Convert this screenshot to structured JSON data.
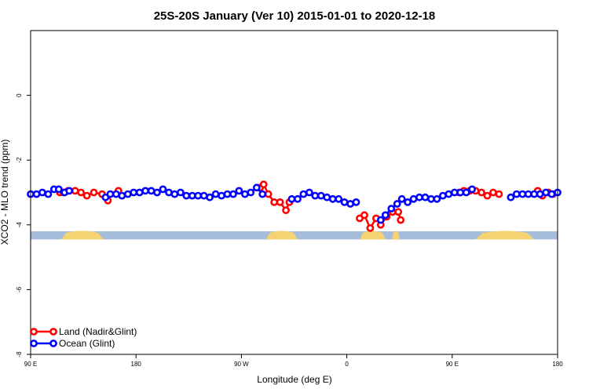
{
  "chart_data": {
    "type": "line",
    "title": "25S-20S January (Ver 10)   2015-01-01 to 2020-12-18",
    "xlabel": "Longitude (deg E)",
    "ylabel": "XCO2 - MLO trend (ppm)",
    "xlim": [
      90,
      540
    ],
    "ylim": [
      -8,
      2
    ],
    "x_ticks": [
      {
        "value": 90,
        "label": "90 E"
      },
      {
        "value": 180,
        "label": "180"
      },
      {
        "value": 270,
        "label": "90 W"
      },
      {
        "value": 360,
        "label": "0"
      },
      {
        "value": 450,
        "label": "90 E"
      },
      {
        "value": 540,
        "label": "180"
      }
    ],
    "y_ticks": [
      {
        "value": 0,
        "label": "0"
      },
      {
        "value": -2,
        "label": "-2"
      },
      {
        "value": -4,
        "label": "-4"
      },
      {
        "value": -6,
        "label": "-6"
      },
      {
        "value": -8,
        "label": "-8"
      }
    ],
    "legend_position": "bottom-left",
    "land_mask": {
      "y_top": -4.2,
      "y_bottom": -4.45,
      "ocean_color": "#a5bcdb",
      "land_color": "#f5d372",
      "land_segments": [
        [
          116,
          152
        ],
        [
          291,
          318
        ],
        [
          371,
          393
        ],
        [
          399,
          405
        ],
        [
          470,
          520
        ]
      ]
    },
    "series": [
      {
        "name": "Land (Nadir&Glint)",
        "color": "#ff0000",
        "segments": [
          {
            "x": [
              115,
              118,
              122,
              128,
              133,
              138,
              144,
              151,
              156
            ],
            "y": [
              -3.0,
              -3.0,
              -2.95,
              -2.95,
              -3.0,
              -3.1,
              -3.0,
              -3.05,
              -3.25
            ]
          },
          {
            "x": [
              165,
              168
            ],
            "y": [
              -2.95,
              -3.1
            ]
          },
          {
            "x": [
              286,
              289,
              293,
              298,
              303,
              308,
              311
            ],
            "y": [
              -2.85,
              -2.75,
              -3.05,
              -3.3,
              -3.3,
              -3.55,
              -3.3
            ]
          },
          {
            "x": [
              371,
              375,
              380,
              385,
              389,
              394,
              399,
              404,
              406
            ],
            "y": [
              -3.8,
              -3.7,
              -4.1,
              -3.8,
              -4.0,
              -3.75,
              -3.6,
              -3.6,
              -3.85
            ]
          },
          {
            "x": [
              456,
              460,
              465,
              470,
              475,
              480,
              485,
              490
            ],
            "y": [
              -3.0,
              -2.95,
              -2.95,
              -2.95,
              -3.0,
              -3.1,
              -3.0,
              -3.05
            ]
          },
          {
            "x": [
              523,
              527,
              532,
              536
            ],
            "y": [
              -2.95,
              -3.1,
              -3.0,
              -3.05
            ]
          }
        ]
      },
      {
        "name": "Ocean (Glint)",
        "color": "#0000ff",
        "segments": [
          {
            "x": [
              90,
              95,
              100,
              105,
              110,
              114,
              119,
              123
            ],
            "y": [
              -3.05,
              -3.05,
              -3.0,
              -3.05,
              -2.9,
              -2.9,
              -3.0,
              -2.95
            ]
          },
          {
            "x": [
              154,
              158,
              163,
              168,
              173,
              178,
              183,
              188,
              193,
              198,
              203,
              208,
              213,
              218,
              223,
              228,
              233,
              238,
              243,
              248,
              253,
              258,
              263,
              268,
              273,
              278,
              283,
              288
            ],
            "y": [
              -3.15,
              -3.05,
              -3.05,
              -3.1,
              -3.05,
              -3.0,
              -3.0,
              -2.95,
              -2.95,
              -3.0,
              -2.9,
              -3.0,
              -3.05,
              -3.0,
              -3.1,
              -3.1,
              -3.1,
              -3.1,
              -3.15,
              -3.05,
              -3.1,
              -3.05,
              -3.05,
              -2.95,
              -3.05,
              -3.0,
              -2.85,
              -3.05
            ]
          },
          {
            "x": [
              313,
              318,
              323,
              328,
              333,
              338,
              343,
              348,
              353,
              358,
              363,
              368
            ],
            "y": [
              -3.2,
              -3.2,
              -3.05,
              -3.0,
              -3.1,
              -3.1,
              -3.15,
              -3.2,
              -3.2,
              -3.3,
              -3.35,
              -3.3
            ]
          },
          {
            "x": [
              389,
              393,
              398,
              403,
              407,
              412,
              417,
              422,
              427,
              432,
              437,
              442,
              447,
              452,
              457,
              462,
              467
            ],
            "y": [
              -3.85,
              -3.7,
              -3.5,
              -3.35,
              -3.2,
              -3.3,
              -3.2,
              -3.15,
              -3.15,
              -3.2,
              -3.2,
              -3.1,
              -3.05,
              -3.0,
              -3.0,
              -3.0,
              -2.9
            ]
          },
          {
            "x": [
              500,
              505,
              510,
              515,
              520,
              525,
              530,
              535,
              540
            ],
            "y": [
              -3.15,
              -3.05,
              -3.05,
              -3.05,
              -3.05,
              -3.05,
              -3.0,
              -3.05,
              -3.0
            ]
          }
        ]
      }
    ]
  }
}
